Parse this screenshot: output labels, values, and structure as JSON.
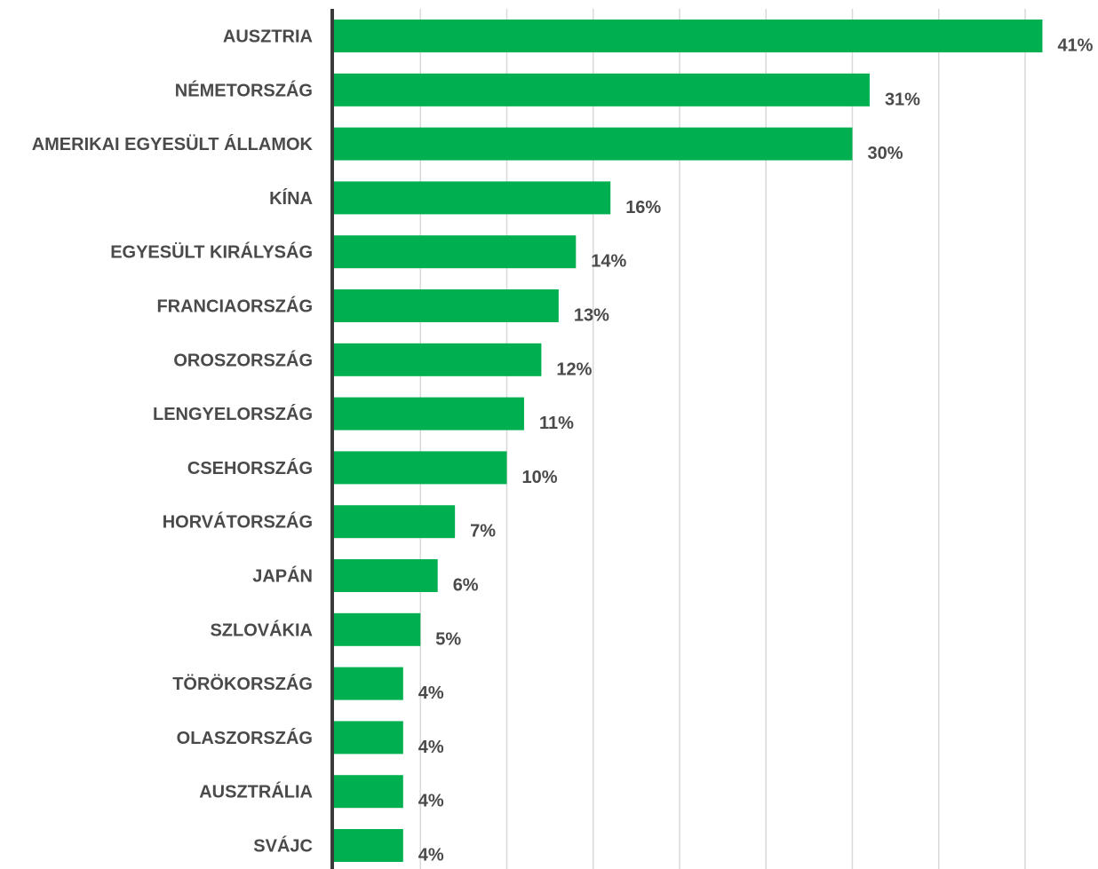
{
  "chart_data": {
    "type": "bar",
    "orientation": "horizontal",
    "categories": [
      "AUSZTRIA",
      "NÉMETORSZÁG",
      "AMERIKAI EGYESÜLT ÁLLAMOK",
      "KÍNA",
      "EGYESÜLT KIRÁLYSÁG",
      "FRANCIAORSZÁG",
      "OROSZORSZÁG",
      "LENGYELORSZÁG",
      "CSEHORSZÁG",
      "HORVÁTORSZÁG",
      "JAPÁN",
      "SZLOVÁKIA",
      "TÖRÖKORSZÁG",
      "OLASZORSZÁG",
      "AUSZTRÁLIA",
      "SVÁJC"
    ],
    "values": [
      41,
      31,
      30,
      16,
      14,
      13,
      12,
      11,
      10,
      7,
      6,
      5,
      4,
      4,
      4,
      4
    ],
    "value_labels": [
      "41%",
      "31%",
      "30%",
      "16%",
      "14%",
      "13%",
      "12%",
      "11%",
      "10%",
      "7%",
      "6%",
      "5%",
      "4%",
      "4%",
      "4%",
      "4%"
    ],
    "xlim": [
      0,
      44
    ],
    "grid": true,
    "legend": "none",
    "colors": {
      "bar": "#00b050",
      "grid": "#d9d9d9",
      "axis": "#3a3a3a",
      "text": "#4a4a4a"
    }
  }
}
